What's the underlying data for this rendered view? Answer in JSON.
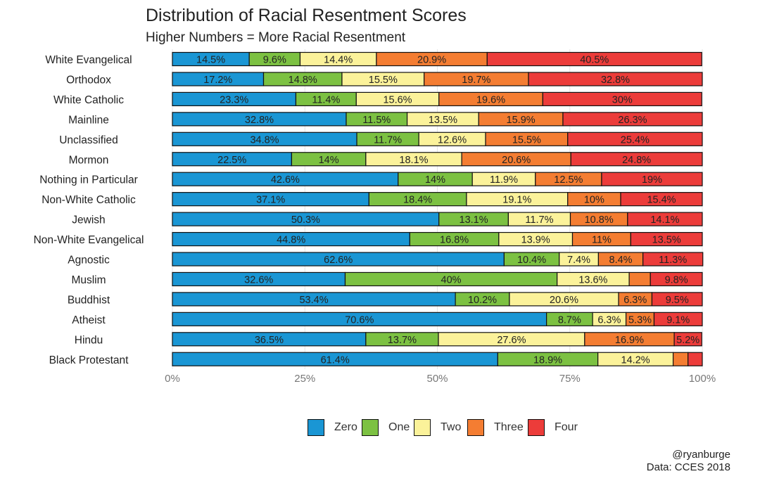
{
  "chart_data": {
    "type": "bar",
    "orientation": "horizontal",
    "stacked": true,
    "title": "Distribution of Racial Resentment Scores",
    "subtitle": "Higher Numbers = More Racial Resentment",
    "xlabel": "",
    "ylabel": "",
    "xlim": [
      0,
      100
    ],
    "x_ticks": [
      "0%",
      "25%",
      "50%",
      "75%",
      "100%"
    ],
    "x_tick_values": [
      0,
      25,
      50,
      75,
      100
    ],
    "legend_position": "bottom",
    "categories": [
      "White Evangelical",
      "Orthodox",
      "White Catholic",
      "Mainline",
      "Unclassified",
      "Mormon",
      "Nothing in Particular",
      "Non-White Catholic",
      "Jewish",
      "Non-White Evangelical",
      "Agnostic",
      "Muslim",
      "Buddhist",
      "Atheist",
      "Hindu",
      "Black Protestant"
    ],
    "series": [
      {
        "name": "Zero",
        "color": "#1a96d4",
        "values": [
          14.5,
          17.2,
          23.3,
          32.8,
          34.8,
          22.5,
          42.6,
          37.1,
          50.3,
          44.8,
          62.6,
          32.6,
          53.4,
          70.6,
          36.5,
          61.4
        ],
        "labels": [
          "14.5%",
          "17.2%",
          "23.3%",
          "32.8%",
          "34.8%",
          "22.5%",
          "42.6%",
          "37.1%",
          "50.3%",
          "44.8%",
          "62.6%",
          "32.6%",
          "53.4%",
          "70.6%",
          "36.5%",
          "61.4%"
        ]
      },
      {
        "name": "One",
        "color": "#7cc142",
        "values": [
          9.6,
          14.8,
          11.4,
          11.5,
          11.7,
          14,
          14,
          18.4,
          13.1,
          16.8,
          10.4,
          40,
          10.2,
          8.7,
          13.7,
          18.9
        ],
        "labels": [
          "9.6%",
          "14.8%",
          "11.4%",
          "11.5%",
          "11.7%",
          "14%",
          "14%",
          "18.4%",
          "13.1%",
          "16.8%",
          "10.4%",
          "40%",
          "10.2%",
          "8.7%",
          "13.7%",
          "18.9%"
        ]
      },
      {
        "name": "Two",
        "color": "#fbf29a",
        "values": [
          14.4,
          15.5,
          15.6,
          13.5,
          12.6,
          18.1,
          11.9,
          19.1,
          11.7,
          13.9,
          7.4,
          13.6,
          20.6,
          6.3,
          27.6,
          14.2
        ],
        "labels": [
          "14.4%",
          "15.5%",
          "15.6%",
          "13.5%",
          "12.6%",
          "18.1%",
          "11.9%",
          "19.1%",
          "11.7%",
          "13.9%",
          "7.4%",
          "13.6%",
          "20.6%",
          "6.3%",
          "27.6%",
          "14.2%"
        ]
      },
      {
        "name": "Three",
        "color": "#f47d32",
        "values": [
          20.9,
          19.7,
          19.6,
          15.9,
          15.5,
          20.6,
          12.5,
          10,
          10.8,
          11,
          8.4,
          4.0,
          6.3,
          5.3,
          16.9,
          2.8
        ],
        "labels": [
          "20.9%",
          "19.7%",
          "19.6%",
          "15.9%",
          "15.5%",
          "20.6%",
          "12.5%",
          "10%",
          "10.8%",
          "11%",
          "8.4%",
          "",
          "6.3%",
          "5.3%",
          "16.9%",
          ""
        ]
      },
      {
        "name": "Four",
        "color": "#ec3c3a",
        "values": [
          40.5,
          32.8,
          30,
          26.3,
          25.4,
          24.8,
          19,
          15.4,
          14.1,
          13.5,
          11.3,
          9.8,
          9.5,
          9.1,
          5.2,
          2.7
        ],
        "labels": [
          "40.5%",
          "32.8%",
          "30%",
          "26.3%",
          "25.4%",
          "24.8%",
          "19%",
          "15.4%",
          "14.1%",
          "13.5%",
          "11.3%",
          "9.8%",
          "9.5%",
          "9.1%",
          "5.2%",
          ""
        ]
      }
    ]
  },
  "credit": {
    "handle": "@ryanburge",
    "source": "Data: CCES 2018"
  }
}
